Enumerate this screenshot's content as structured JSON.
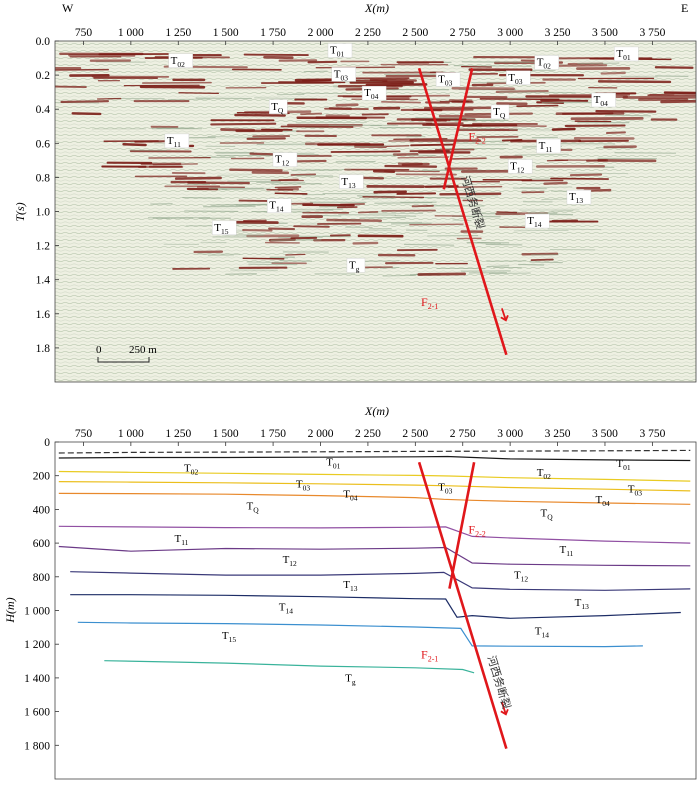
{
  "figure": {
    "direction_west": "W",
    "direction_east": "E",
    "scale_bar": {
      "zero": "0",
      "length": "250 m"
    },
    "fault_label": "河西务断裂"
  },
  "chart_data": [
    {
      "type": "seismic-section",
      "xlabel": "X(m)",
      "ylabel": "T(s)",
      "xlim": [
        600,
        3980
      ],
      "ylim": [
        0,
        2.0
      ],
      "x_ticks": [
        "750",
        "1 000",
        "1 250",
        "1 500",
        "1 750",
        "2 000",
        "2 250",
        "2 500",
        "2 750",
        "3 000",
        "3 250",
        "3 500",
        "3 750"
      ],
      "y_ticks": [
        "0.0",
        "0.2",
        "0.4",
        "0.6",
        "0.8",
        "1.0",
        "1.2",
        "1.4",
        "1.6",
        "1.8"
      ],
      "colors": {
        "positive": "#7a1a14",
        "negative": "#b9c9b2",
        "background": "#eef0e2",
        "fault": "#e0171b"
      },
      "horizon_labels": [
        {
          "name": "T01",
          "x": 2050,
          "t": 0.05
        },
        {
          "name": "T01",
          "x": 3560,
          "t": 0.07
        },
        {
          "name": "T02",
          "x": 1210,
          "t": 0.11
        },
        {
          "name": "T02",
          "x": 3140,
          "t": 0.12
        },
        {
          "name": "T03",
          "x": 2070,
          "t": 0.19
        },
        {
          "name": "T03",
          "x": 2620,
          "t": 0.22
        },
        {
          "name": "T03",
          "x": 2990,
          "t": 0.21
        },
        {
          "name": "T04",
          "x": 2230,
          "t": 0.3
        },
        {
          "name": "T04",
          "x": 3440,
          "t": 0.34
        },
        {
          "name": "TQ",
          "x": 1740,
          "t": 0.38
        },
        {
          "name": "TQ",
          "x": 2910,
          "t": 0.41
        },
        {
          "name": "T11",
          "x": 1190,
          "t": 0.58
        },
        {
          "name": "T11",
          "x": 3150,
          "t": 0.61
        },
        {
          "name": "T12",
          "x": 1760,
          "t": 0.69
        },
        {
          "name": "T12",
          "x": 3000,
          "t": 0.73
        },
        {
          "name": "T13",
          "x": 2110,
          "t": 0.82
        },
        {
          "name": "T13",
          "x": 3310,
          "t": 0.91
        },
        {
          "name": "T14",
          "x": 1730,
          "t": 0.96
        },
        {
          "name": "T14",
          "x": 3090,
          "t": 1.05
        },
        {
          "name": "T15",
          "x": 1440,
          "t": 1.09
        },
        {
          "name": "Tg",
          "x": 2150,
          "t": 1.31
        }
      ],
      "faults": [
        {
          "name": "F2-1",
          "points": [
            [
              2520,
              0.16
            ],
            [
              2980,
              1.84
            ]
          ],
          "label_x": 2530,
          "label_t": 1.53
        },
        {
          "name": "F2-2",
          "points": [
            [
              2800,
              0.16
            ],
            [
              2650,
              0.87
            ]
          ],
          "label_x": 2780,
          "label_t": 0.56
        }
      ]
    },
    {
      "type": "line",
      "xlabel": "X(m)",
      "ylabel": "H(m)",
      "xlim": [
        600,
        3980
      ],
      "ylim": [
        0,
        2000
      ],
      "x_ticks": [
        "750",
        "1 000",
        "1 250",
        "1 500",
        "1 750",
        "2 000",
        "2 250",
        "2 500",
        "2 750",
        "3 000",
        "3 250",
        "3 500",
        "3 750"
      ],
      "y_ticks": [
        "0",
        "200",
        "400",
        "600",
        "800",
        "1 000",
        "1 200",
        "1 400",
        "1 600",
        "1 800"
      ],
      "series": [
        {
          "name": "T01",
          "color": "#333333",
          "dashed": true,
          "x": [
            620,
            1000,
            1500,
            2000,
            2500,
            3000,
            3500,
            3950
          ],
          "y": [
            65,
            62,
            60,
            58,
            56,
            54,
            52,
            50
          ],
          "label_x": 2030,
          "label_y": 55
        },
        {
          "name": "T02",
          "color": "#1a1a1a",
          "dashed": false,
          "x": [
            620,
            1000,
            1500,
            2000,
            2500,
            2670,
            3000,
            3500,
            3950
          ],
          "y": [
            95,
            92,
            92,
            90,
            88,
            86,
            100,
            106,
            110
          ],
          "label_x": 1280,
          "label_y": 92
        },
        {
          "name": "T03",
          "color": "#e9cb22",
          "dashed": false,
          "x": [
            620,
            1000,
            1500,
            2000,
            2500,
            2680,
            3000,
            3500,
            3950
          ],
          "y": [
            175,
            180,
            186,
            192,
            198,
            202,
            212,
            222,
            232
          ],
          "label_x": 1870,
          "label_y": 188
        },
        {
          "name": "T04",
          "color": "#ebbf1d",
          "dashed": false,
          "x": [
            620,
            1000,
            1500,
            2000,
            2500,
            2680,
            3000,
            3500,
            3950
          ],
          "y": [
            235,
            238,
            242,
            248,
            256,
            260,
            270,
            280,
            290
          ],
          "label_x": 2120,
          "label_y": 247
        },
        {
          "name": "TQ",
          "color": "#e8892c",
          "dashed": false,
          "x": [
            620,
            1000,
            1500,
            2000,
            2500,
            2650,
            2800,
            3000,
            3500,
            3950
          ],
          "y": [
            305,
            306,
            310,
            318,
            330,
            340,
            346,
            352,
            362,
            370
          ],
          "label_x": 1610,
          "label_y": 318
        },
        {
          "name": "T11",
          "color": "#9150a3",
          "dashed": false,
          "x": [
            620,
            1000,
            1500,
            2000,
            2500,
            2660,
            2800,
            3000,
            3500,
            3950
          ],
          "y": [
            500,
            504,
            508,
            510,
            506,
            504,
            560,
            570,
            588,
            600
          ],
          "label_x": 1230,
          "label_y": 510
        },
        {
          "name": "T12",
          "color": "#6b3a87",
          "dashed": false,
          "x": [
            620,
            1000,
            1250,
            1500,
            2000,
            2500,
            2660,
            2800,
            3000,
            3500,
            3950
          ],
          "y": [
            620,
            648,
            640,
            632,
            636,
            630,
            626,
            718,
            725,
            732,
            735
          ],
          "label_x": 1800,
          "label_y": 636
        },
        {
          "name": "T13",
          "color": "#3a3978",
          "dashed": false,
          "x": [
            680,
            1000,
            1500,
            2000,
            2500,
            2650,
            2800,
            3000,
            3500,
            3950
          ],
          "y": [
            770,
            778,
            790,
            790,
            780,
            774,
            866,
            874,
            880,
            872
          ],
          "label_x": 2120,
          "label_y": 782
        },
        {
          "name": "T14",
          "color": "#1d2d66",
          "dashed": false,
          "x": [
            680,
            1000,
            1500,
            2000,
            2500,
            2660,
            2720,
            2800,
            3000,
            3500,
            3900
          ],
          "y": [
            906,
            906,
            910,
            918,
            930,
            932,
            1040,
            1030,
            1046,
            1030,
            1012
          ],
          "label_x": 1780,
          "label_y": 916
        },
        {
          "name": "T15",
          "color": "#3b8fcf",
          "dashed": false,
          "x": [
            720,
            1000,
            1500,
            2000,
            2500,
            2740,
            2800,
            3000,
            3500,
            3700
          ],
          "y": [
            1070,
            1074,
            1078,
            1086,
            1098,
            1106,
            1210,
            1212,
            1214,
            1210
          ],
          "label_x": 1480,
          "label_y": 1085
        },
        {
          "name": "Tg",
          "color": "#3ab39b",
          "dashed": false,
          "x": [
            860,
            1250,
            1500,
            2000,
            2500,
            2750,
            2810
          ],
          "y": [
            1298,
            1306,
            1312,
            1330,
            1340,
            1350,
            1370
          ],
          "label_x": 2130,
          "label_y": 1338
        }
      ],
      "horizon_labels_right": [
        {
          "name": "T01",
          "x": 3560,
          "y": 65
        },
        {
          "name": "T02",
          "x": 3140,
          "y": 118
        },
        {
          "name": "T03",
          "x": 2620,
          "y": 206
        },
        {
          "name": "T03",
          "x": 3620,
          "y": 218
        },
        {
          "name": "T04",
          "x": 3450,
          "y": 280
        },
        {
          "name": "TQ",
          "x": 3160,
          "y": 360
        },
        {
          "name": "T11",
          "x": 3260,
          "y": 575
        },
        {
          "name": "T12",
          "x": 3020,
          "y": 726
        },
        {
          "name": "T13",
          "x": 3340,
          "y": 890
        },
        {
          "name": "T14",
          "x": 3130,
          "y": 1060
        }
      ],
      "faults": [
        {
          "name": "F2-1",
          "points": [
            [
              2520,
              120
            ],
            [
              2980,
              1820
            ]
          ],
          "label_x": 2530,
          "label_y": 1260
        },
        {
          "name": "F2-2",
          "points": [
            [
              2810,
              120
            ],
            [
              2680,
              870
            ]
          ],
          "label_x": 2780,
          "label_y": 520
        }
      ]
    }
  ]
}
